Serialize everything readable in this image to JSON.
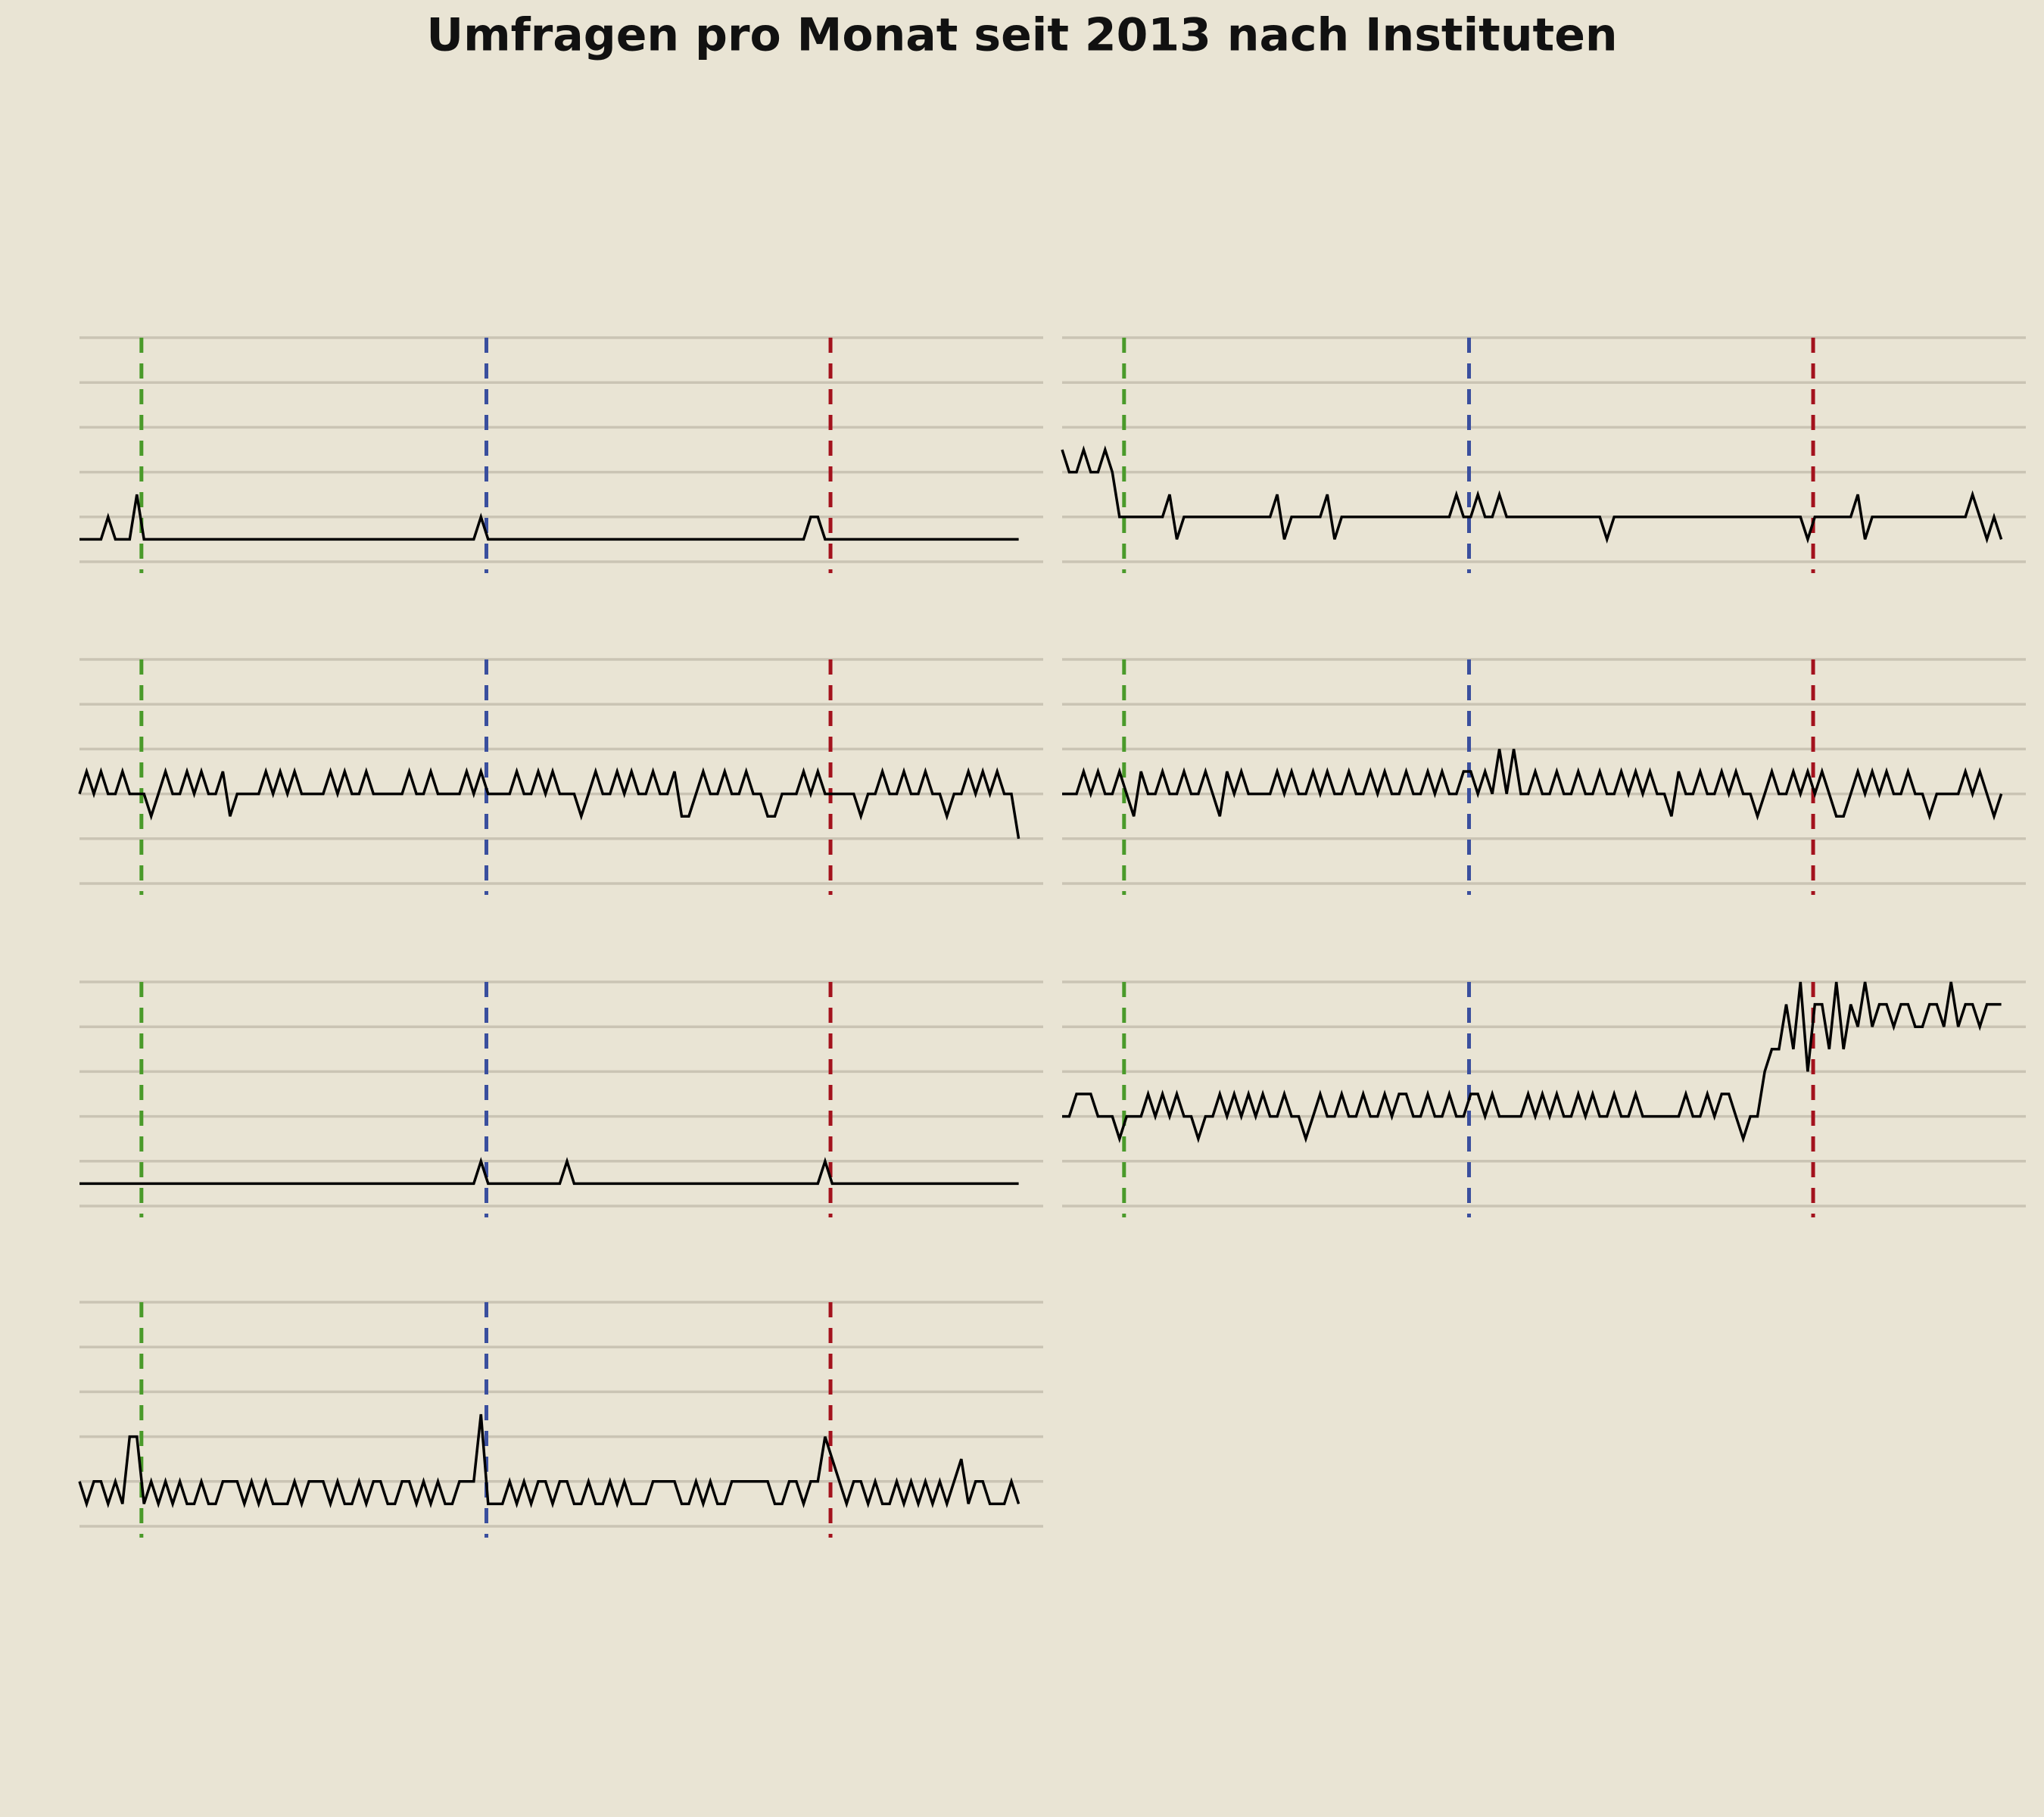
{
  "chart_data": {
    "type": "line",
    "title": "Umfragen pro Monat seit 2013 nach Instituten",
    "xlim": [
      2013,
      2024
    ],
    "ylim": [
      0,
      10
    ],
    "yticks": [
      0,
      2,
      4,
      6,
      8,
      10
    ],
    "grid": true,
    "x": [
      2013,
      2013.083,
      2013.167,
      2013.25,
      2013.333,
      2013.417,
      2013.5,
      2013.583,
      2013.667,
      2013.75,
      2013.833,
      2013.917,
      2014,
      2014.083,
      2014.167,
      2014.25,
      2014.333,
      2014.417,
      2014.5,
      2014.583,
      2014.667,
      2014.75,
      2014.833,
      2014.917,
      2015,
      2015.083,
      2015.167,
      2015.25,
      2015.333,
      2015.417,
      2015.5,
      2015.583,
      2015.667,
      2015.75,
      2015.833,
      2015.917,
      2016,
      2016.083,
      2016.167,
      2016.25,
      2016.333,
      2016.417,
      2016.5,
      2016.583,
      2016.667,
      2016.75,
      2016.833,
      2016.917,
      2017,
      2017.083,
      2017.167,
      2017.25,
      2017.333,
      2017.417,
      2017.5,
      2017.583,
      2017.667,
      2017.75,
      2017.833,
      2017.917,
      2018,
      2018.083,
      2018.167,
      2018.25,
      2018.333,
      2018.417,
      2018.5,
      2018.583,
      2018.667,
      2018.75,
      2018.833,
      2018.917,
      2019,
      2019.083,
      2019.167,
      2019.25,
      2019.333,
      2019.417,
      2019.5,
      2019.583,
      2019.667,
      2019.75,
      2019.833,
      2019.917,
      2020,
      2020.083,
      2020.167,
      2020.25,
      2020.333,
      2020.417,
      2020.5,
      2020.583,
      2020.667,
      2020.75,
      2020.833,
      2020.917,
      2021,
      2021.083,
      2021.167,
      2021.25,
      2021.333,
      2021.417,
      2021.5,
      2021.583,
      2021.667,
      2021.75,
      2021.833,
      2021.917,
      2022,
      2022.083,
      2022.167,
      2022.25,
      2022.333,
      2022.417,
      2022.5,
      2022.583,
      2022.667,
      2022.75,
      2022.833,
      2022.917,
      2023,
      2023.083,
      2023.167,
      2023.25,
      2023.333,
      2023.417,
      2023.5,
      2023.583,
      2023.667,
      2023.75,
      2023.833,
      2023.917
    ],
    "vlines": [
      {
        "value": 2013.72,
        "color": "#4a9a2a"
      },
      {
        "value": 2017.73,
        "color": "#3a4f9e"
      },
      {
        "value": 2021.73,
        "color": "#a3121d"
      }
    ],
    "series": [
      {
        "color": "#000000",
        "values": [
          1,
          1,
          1,
          1,
          2,
          1,
          1,
          1,
          3,
          1,
          1,
          1,
          1,
          1,
          1,
          1,
          1,
          1,
          1,
          1,
          1,
          1,
          1,
          1,
          1,
          1,
          1,
          1,
          1,
          1,
          1,
          1,
          1,
          1,
          1,
          1,
          1,
          1,
          1,
          1,
          1,
          1,
          1,
          1,
          1,
          1,
          1,
          1,
          1,
          1,
          1,
          1,
          1,
          1,
          1,
          1,
          2,
          1,
          1,
          1,
          1,
          1,
          1,
          1,
          1,
          1,
          1,
          1,
          1,
          1,
          1,
          1,
          1,
          1,
          1,
          1,
          1,
          1,
          1,
          1,
          1,
          1,
          1,
          1,
          1,
          1,
          1,
          1,
          1,
          1,
          1,
          1,
          1,
          1,
          1,
          1,
          1,
          1,
          1,
          1,
          1,
          1,
          2,
          2,
          1,
          1,
          1,
          1,
          1,
          1,
          1,
          1,
          1,
          1,
          1,
          1,
          1,
          1,
          1,
          1,
          1,
          1,
          1,
          1,
          1,
          1,
          1,
          1,
          1,
          1,
          1,
          1
        ]
      },
      {
        "color": "#000000",
        "values": [
          5,
          4,
          4,
          5,
          4,
          4,
          5,
          4,
          2,
          2,
          2,
          2,
          2,
          2,
          2,
          3,
          1,
          2,
          2,
          2,
          2,
          2,
          2,
          2,
          2,
          2,
          2,
          2,
          2,
          2,
          3,
          1,
          2,
          2,
          2,
          2,
          2,
          3,
          1,
          2,
          2,
          2,
          2,
          2,
          2,
          2,
          2,
          2,
          2,
          2,
          2,
          2,
          2,
          2,
          2,
          3,
          2,
          2,
          3,
          2,
          2,
          3,
          2,
          2,
          2,
          2,
          2,
          2,
          2,
          2,
          2,
          2,
          2,
          2,
          2,
          2,
          1,
          2,
          2,
          2,
          2,
          2,
          2,
          2,
          2,
          2,
          2,
          2,
          2,
          2,
          2,
          2,
          2,
          2,
          2,
          2,
          2,
          2,
          2,
          2,
          2,
          2,
          2,
          2,
          1,
          2,
          2,
          2,
          2,
          2,
          2,
          3,
          1,
          2,
          2,
          2,
          2,
          2,
          2,
          2,
          2,
          2,
          2,
          2,
          2,
          2,
          2,
          3,
          2,
          1,
          2,
          1
        ]
      },
      {
        "color": "#000000",
        "values": [
          4,
          5,
          4,
          5,
          4,
          4,
          5,
          4,
          4,
          4,
          3,
          4,
          5,
          4,
          4,
          5,
          4,
          5,
          4,
          4,
          5,
          3,
          4,
          4,
          4,
          4,
          5,
          4,
          5,
          4,
          5,
          4,
          4,
          4,
          4,
          5,
          4,
          5,
          4,
          4,
          5,
          4,
          4,
          4,
          4,
          4,
          5,
          4,
          4,
          5,
          4,
          4,
          4,
          4,
          5,
          4,
          5,
          4,
          4,
          4,
          4,
          5,
          4,
          4,
          5,
          4,
          5,
          4,
          4,
          4,
          3,
          4,
          5,
          4,
          4,
          5,
          4,
          5,
          4,
          4,
          5,
          4,
          4,
          5,
          3,
          3,
          4,
          5,
          4,
          4,
          5,
          4,
          4,
          5,
          4,
          4,
          3,
          3,
          4,
          4,
          4,
          5,
          4,
          5,
          4,
          4,
          4,
          4,
          4,
          3,
          4,
          4,
          5,
          4,
          4,
          5,
          4,
          4,
          5,
          4,
          4,
          3,
          4,
          4,
          5,
          4,
          5,
          4,
          5,
          4,
          4,
          2
        ]
      },
      {
        "color": "#000000",
        "values": [
          4,
          4,
          4,
          5,
          4,
          5,
          4,
          4,
          5,
          4,
          3,
          5,
          4,
          4,
          5,
          4,
          4,
          5,
          4,
          4,
          5,
          4,
          3,
          5,
          4,
          5,
          4,
          4,
          4,
          4,
          5,
          4,
          5,
          4,
          4,
          5,
          4,
          5,
          4,
          4,
          5,
          4,
          4,
          5,
          4,
          5,
          4,
          4,
          5,
          4,
          4,
          5,
          4,
          5,
          4,
          4,
          5,
          5,
          4,
          5,
          4,
          6,
          4,
          6,
          4,
          4,
          5,
          4,
          4,
          5,
          4,
          4,
          5,
          4,
          4,
          5,
          4,
          4,
          5,
          4,
          5,
          4,
          5,
          4,
          4,
          3,
          5,
          4,
          4,
          5,
          4,
          4,
          5,
          4,
          5,
          4,
          4,
          3,
          4,
          5,
          4,
          4,
          5,
          4,
          5,
          4,
          5,
          4,
          3,
          3,
          4,
          5,
          4,
          5,
          4,
          5,
          4,
          4,
          5,
          4,
          4,
          3,
          4,
          4,
          4,
          4,
          5,
          4,
          5,
          4,
          3,
          4
        ]
      },
      {
        "color": "#000000",
        "values": [
          1,
          1,
          1,
          1,
          1,
          1,
          1,
          1,
          1,
          1,
          1,
          1,
          1,
          1,
          1,
          1,
          1,
          1,
          1,
          1,
          1,
          1,
          1,
          1,
          1,
          1,
          1,
          1,
          1,
          1,
          1,
          1,
          1,
          1,
          1,
          1,
          1,
          1,
          1,
          1,
          1,
          1,
          1,
          1,
          1,
          1,
          1,
          1,
          1,
          1,
          1,
          1,
          1,
          1,
          1,
          1,
          2,
          1,
          1,
          1,
          1,
          1,
          1,
          1,
          1,
          1,
          1,
          1,
          2,
          1,
          1,
          1,
          1,
          1,
          1,
          1,
          1,
          1,
          1,
          1,
          1,
          1,
          1,
          1,
          1,
          1,
          1,
          1,
          1,
          1,
          1,
          1,
          1,
          1,
          1,
          1,
          1,
          1,
          1,
          1,
          1,
          1,
          1,
          1,
          2,
          1,
          1,
          1,
          1,
          1,
          1,
          1,
          1,
          1,
          1,
          1,
          1,
          1,
          1,
          1,
          1,
          1,
          1,
          1,
          1,
          1,
          1,
          1,
          1,
          1,
          1,
          1
        ]
      },
      {
        "color": "#000000",
        "values": [
          4,
          4,
          5,
          5,
          5,
          4,
          4,
          4,
          3,
          4,
          4,
          4,
          5,
          4,
          5,
          4,
          5,
          4,
          4,
          3,
          4,
          4,
          5,
          4,
          5,
          4,
          5,
          4,
          5,
          4,
          4,
          5,
          4,
          4,
          3,
          4,
          5,
          4,
          4,
          5,
          4,
          4,
          5,
          4,
          4,
          5,
          4,
          5,
          5,
          4,
          4,
          5,
          4,
          4,
          5,
          4,
          4,
          5,
          5,
          4,
          5,
          4,
          4,
          4,
          4,
          5,
          4,
          5,
          4,
          5,
          4,
          4,
          5,
          4,
          5,
          4,
          4,
          5,
          4,
          4,
          5,
          4,
          4,
          4,
          4,
          4,
          4,
          5,
          4,
          4,
          5,
          4,
          5,
          5,
          4,
          3,
          4,
          4,
          6,
          7,
          7,
          9,
          7,
          10,
          6,
          9,
          9,
          7,
          10,
          7,
          9,
          8,
          10,
          8,
          9,
          9,
          8,
          9,
          9,
          8,
          8,
          9,
          9,
          8,
          10,
          8,
          9,
          9,
          8,
          9,
          9,
          9
        ]
      },
      {
        "color": "#000000",
        "values": [
          2,
          1,
          2,
          2,
          1,
          2,
          1,
          4,
          4,
          1,
          2,
          1,
          2,
          1,
          2,
          1,
          1,
          2,
          1,
          1,
          2,
          2,
          2,
          1,
          2,
          1,
          2,
          1,
          1,
          1,
          2,
          1,
          2,
          2,
          2,
          1,
          2,
          1,
          1,
          2,
          1,
          2,
          2,
          1,
          1,
          2,
          2,
          1,
          2,
          1,
          2,
          1,
          1,
          2,
          2,
          2,
          5,
          1,
          1,
          1,
          2,
          1,
          2,
          1,
          2,
          2,
          1,
          2,
          2,
          1,
          1,
          2,
          1,
          1,
          2,
          1,
          2,
          1,
          1,
          1,
          2,
          2,
          2,
          2,
          1,
          1,
          2,
          1,
          2,
          1,
          1,
          2,
          2,
          2,
          2,
          2,
          2,
          1,
          1,
          2,
          2,
          1,
          2,
          2,
          4,
          3,
          2,
          1,
          2,
          2,
          1,
          2,
          1,
          1,
          2,
          1,
          2,
          1,
          2,
          1,
          2,
          1,
          2,
          3,
          1,
          2,
          2,
          1,
          1,
          1,
          2,
          1
        ]
      }
    ]
  }
}
